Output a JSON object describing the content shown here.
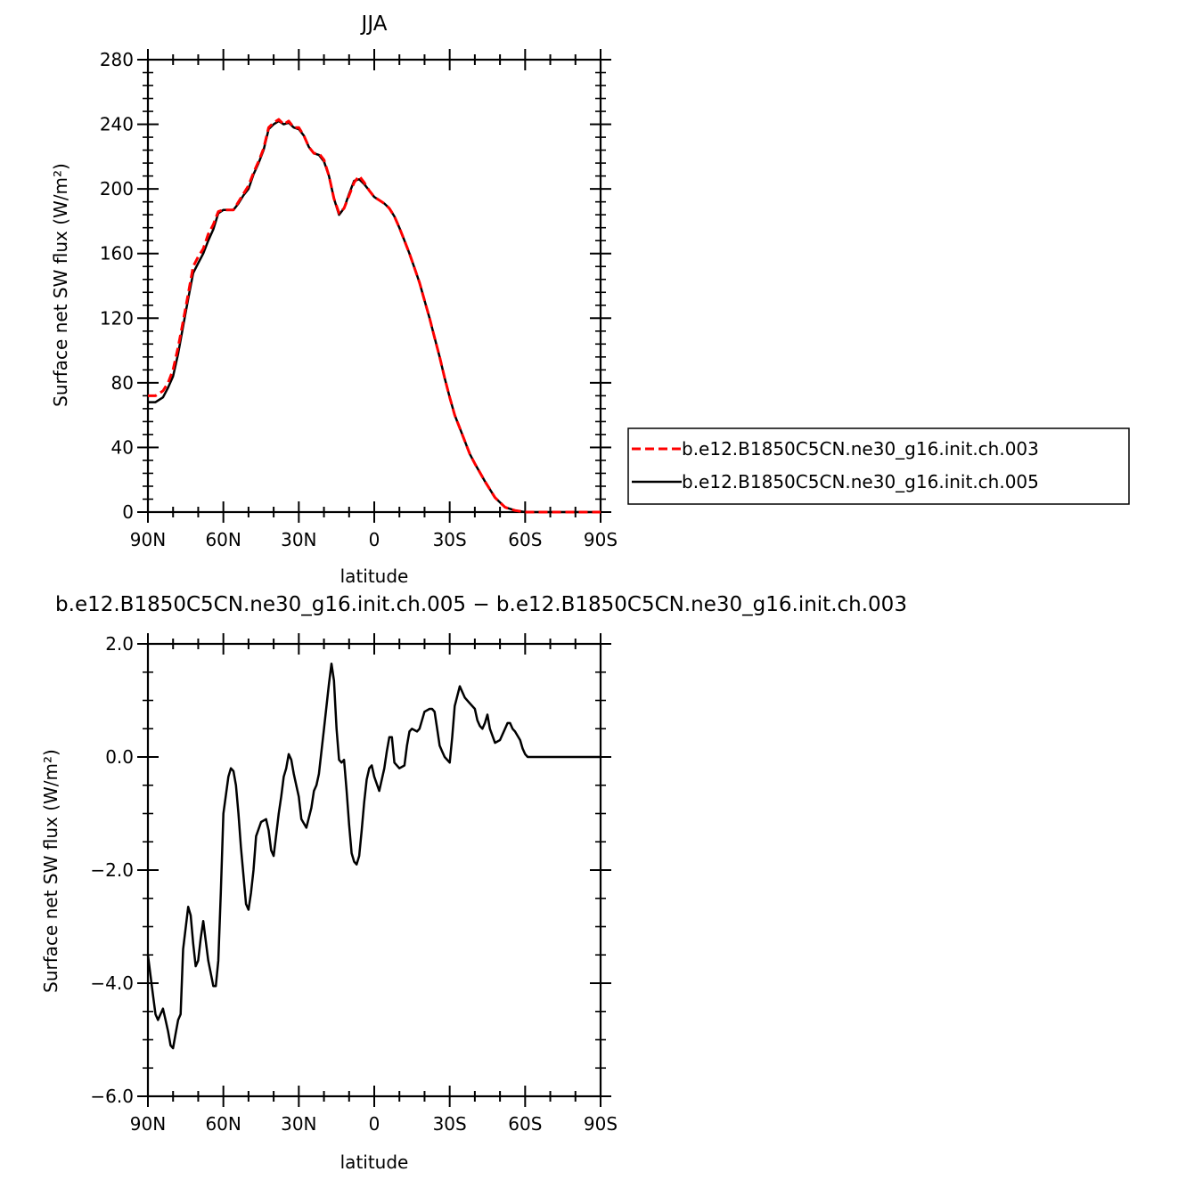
{
  "chart_data": [
    {
      "type": "line",
      "title": "JJA",
      "xlabel": "latitude",
      "ylabel": "Surface net SW flux (W/m²)",
      "xlim": [
        90,
        -90
      ],
      "ylim": [
        0,
        280
      ],
      "xticks": [
        90,
        60,
        30,
        0,
        -30,
        -60,
        -90
      ],
      "xtick_labels": [
        "90N",
        "60N",
        "30N",
        "0",
        "30S",
        "60S",
        "90S"
      ],
      "yticks": [
        0,
        40,
        80,
        120,
        160,
        200,
        240,
        280
      ],
      "ytick_labels": [
        "0",
        "40",
        "80",
        "120",
        "160",
        "200",
        "240",
        "280"
      ],
      "legend_position": "right",
      "series": [
        {
          "name": "b.e12.B1850C5CN.ne30_g16.init.ch.003",
          "color": "#ff0000",
          "dash": "dashed",
          "x": [
            90,
            87,
            84,
            82,
            80,
            78,
            76,
            74,
            72,
            70,
            68,
            66,
            64,
            62,
            60,
            58,
            56,
            54,
            52,
            50,
            48,
            46,
            44,
            42,
            40,
            38,
            36,
            34,
            32,
            30,
            28,
            26,
            24,
            22,
            20,
            18,
            16,
            14,
            12,
            10,
            8,
            6,
            4,
            2,
            0,
            -2,
            -4,
            -6,
            -8,
            -10,
            -12,
            -14,
            -16,
            -18,
            -20,
            -22,
            -24,
            -26,
            -28,
            -30,
            -32,
            -34,
            -36,
            -38,
            -40,
            -44,
            -48,
            -52,
            -56,
            -60,
            -62,
            -64,
            -66,
            -68,
            -70,
            -72,
            -75,
            -80,
            -85,
            -90
          ],
          "y": [
            72,
            72,
            75,
            80,
            88,
            102,
            118,
            135,
            152,
            158,
            163,
            172,
            178,
            186,
            187,
            187,
            187,
            192,
            197,
            202,
            210,
            217,
            225,
            238,
            241,
            243,
            240,
            242,
            238,
            238,
            233,
            226,
            222,
            222,
            218,
            208,
            194,
            185,
            188,
            196,
            204,
            208,
            204,
            199,
            195,
            193,
            191,
            188,
            183,
            176,
            168,
            160,
            151,
            142,
            131,
            120,
            108,
            96,
            83,
            71,
            60,
            52,
            44,
            36,
            30,
            19,
            9,
            3,
            1,
            0,
            0,
            0,
            0,
            0,
            0,
            0,
            0,
            0,
            0,
            0
          ]
        },
        {
          "name": "b.e12.B1850C5CN.ne30_g16.init.ch.005",
          "color": "#000000",
          "dash": "solid",
          "x": [
            90,
            87,
            84,
            82,
            80,
            78,
            76,
            74,
            72,
            70,
            68,
            66,
            64,
            62,
            60,
            58,
            56,
            54,
            52,
            50,
            48,
            46,
            44,
            42,
            40,
            38,
            36,
            34,
            32,
            30,
            28,
            26,
            24,
            22,
            20,
            18,
            16,
            14,
            12,
            10,
            8,
            6,
            4,
            2,
            0,
            -2,
            -4,
            -6,
            -8,
            -10,
            -12,
            -14,
            -16,
            -18,
            -20,
            -22,
            -24,
            -26,
            -28,
            -30,
            -32,
            -34,
            -36,
            -38,
            -40,
            -44,
            -48,
            -52,
            -56,
            -60,
            -62,
            -64,
            -66,
            -68,
            -70,
            -72,
            -75,
            -80,
            -85,
            -90
          ],
          "y": [
            68,
            68,
            71,
            77,
            84,
            98,
            115,
            132,
            148,
            154,
            160,
            168,
            175,
            185,
            187,
            187,
            187,
            191,
            196,
            200,
            209,
            216,
            224,
            237,
            240,
            242,
            240,
            241,
            238,
            237,
            233,
            226,
            222,
            221,
            217,
            208,
            194,
            184,
            188,
            197,
            205,
            206,
            203,
            199,
            195,
            193,
            191,
            188,
            183,
            176,
            168,
            160,
            151,
            142,
            131,
            120,
            108,
            96,
            83,
            71,
            60,
            52,
            44,
            36,
            30,
            19,
            9,
            3,
            1,
            0,
            0,
            0,
            0,
            0,
            0,
            0,
            0,
            0,
            0,
            0
          ]
        }
      ]
    },
    {
      "type": "line",
      "title": "b.e12.B1850C5CN.ne30_g16.init.ch.005 − b.e12.B1850C5CN.ne30_g16.init.ch.003",
      "xlabel": "latitude",
      "ylabel": "Surface net SW flux (W/m²)",
      "xlim": [
        90,
        -90
      ],
      "ylim": [
        -6,
        2
      ],
      "xticks": [
        90,
        60,
        30,
        0,
        -30,
        -60,
        -90
      ],
      "xtick_labels": [
        "90N",
        "60N",
        "30N",
        "0",
        "30S",
        "60S",
        "90S"
      ],
      "yticks": [
        -6,
        -4,
        -2,
        0,
        2
      ],
      "ytick_labels": [
        "−6.0",
        "−4.0",
        "−2.0",
        "0.0",
        "2.0"
      ],
      "series": [
        {
          "color": "#000000",
          "x": [
            90,
            88,
            87,
            86,
            85,
            84,
            83,
            82,
            81,
            80,
            79,
            78,
            77,
            76,
            74,
            73,
            72,
            71,
            70,
            69,
            68,
            66,
            64,
            63,
            62,
            61,
            60,
            58,
            57,
            56,
            55,
            54,
            53,
            51,
            50,
            49,
            48,
            47,
            45,
            43,
            42,
            41,
            40,
            38,
            37,
            36,
            35,
            34,
            33,
            32,
            31,
            30,
            29,
            27,
            25,
            24,
            23,
            22,
            20,
            18,
            17,
            16,
            15,
            14,
            13,
            12,
            11,
            10,
            9,
            8,
            7,
            6,
            5,
            4,
            3,
            2,
            1,
            0,
            -2,
            -4,
            -5,
            -6,
            -7,
            -8,
            -10,
            -12,
            -13,
            -14,
            -15,
            -17,
            -18,
            -20,
            -22,
            -23,
            -24,
            -25,
            -26,
            -27,
            -28,
            -30,
            -31,
            -32,
            -34,
            -36,
            -38,
            -40,
            -41,
            -42,
            -43,
            -44,
            -45,
            -46,
            -48,
            -50,
            -52,
            -53,
            -54,
            -55,
            -56,
            -58,
            -59,
            -60,
            -61,
            -62,
            -63,
            -64,
            -65,
            -66,
            -67,
            -68,
            -69,
            -70,
            -72,
            -74,
            -80,
            -90
          ],
          "y": [
            -3.5,
            -4.2,
            -4.55,
            -4.65,
            -4.55,
            -4.45,
            -4.65,
            -4.85,
            -5.1,
            -5.15,
            -4.9,
            -4.65,
            -4.55,
            -3.4,
            -2.65,
            -2.8,
            -3.3,
            -3.7,
            -3.6,
            -3.2,
            -2.9,
            -3.6,
            -4.05,
            -4.05,
            -3.6,
            -2.4,
            -1.0,
            -0.35,
            -0.2,
            -0.25,
            -0.5,
            -1.0,
            -1.6,
            -2.6,
            -2.7,
            -2.4,
            -2.0,
            -1.4,
            -1.15,
            -1.1,
            -1.3,
            -1.65,
            -1.75,
            -1.0,
            -0.7,
            -0.35,
            -0.2,
            0.05,
            -0.05,
            -0.3,
            -0.5,
            -0.7,
            -1.1,
            -1.25,
            -0.9,
            -0.6,
            -0.5,
            -0.3,
            0.5,
            1.3,
            1.65,
            1.35,
            0.5,
            -0.05,
            -0.1,
            -0.05,
            -0.6,
            -1.2,
            -1.7,
            -1.85,
            -1.9,
            -1.75,
            -1.3,
            -0.8,
            -0.4,
            -0.2,
            -0.15,
            -0.35,
            -0.6,
            -0.2,
            0.1,
            0.35,
            0.35,
            -0.1,
            -0.2,
            -0.15,
            0.2,
            0.45,
            0.5,
            0.45,
            0.5,
            0.8,
            0.85,
            0.85,
            0.8,
            0.5,
            0.2,
            0.1,
            0.0,
            -0.1,
            0.35,
            0.9,
            1.25,
            1.05,
            0.95,
            0.85,
            0.65,
            0.55,
            0.5,
            0.6,
            0.75,
            0.5,
            0.25,
            0.3,
            0.5,
            0.6,
            0.6,
            0.5,
            0.45,
            0.3,
            0.15,
            0.05,
            0.0,
            0.0,
            0.0,
            0.0,
            0.0,
            0.0,
            0.0,
            0.0,
            0.0,
            0.0,
            0.0,
            0.0,
            0.0,
            0.0
          ]
        }
      ]
    }
  ]
}
